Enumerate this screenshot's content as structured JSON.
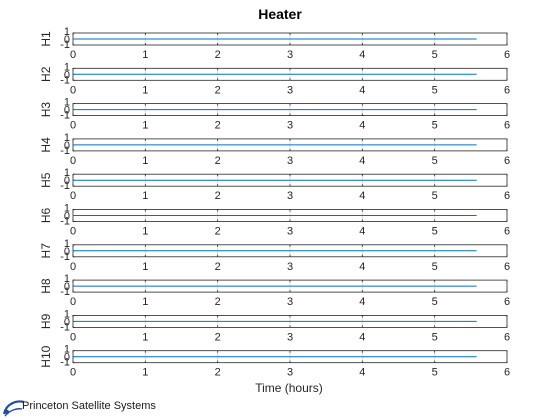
{
  "chart_data": {
    "type": "line",
    "title": "Heater",
    "xlabel": "Time (hours)",
    "xlim": [
      0,
      6
    ],
    "ylim": [
      -1,
      1
    ],
    "xticks": [
      "0",
      "1",
      "2",
      "3",
      "4",
      "5",
      "6"
    ],
    "yticks": [
      "-1",
      "0",
      "1"
    ],
    "grid": "x",
    "subplots": [
      {
        "ylabel": "H1",
        "x": [
          0,
          5.58
        ],
        "y": [
          0,
          0
        ]
      },
      {
        "ylabel": "H2",
        "x": [
          0,
          5.58
        ],
        "y": [
          0,
          0
        ]
      },
      {
        "ylabel": "H3",
        "x": [
          0,
          5.58
        ],
        "y": [
          0,
          0
        ]
      },
      {
        "ylabel": "H4",
        "x": [
          0,
          5.58
        ],
        "y": [
          0,
          0
        ]
      },
      {
        "ylabel": "H5",
        "x": [
          0,
          5.58
        ],
        "y": [
          0,
          0
        ]
      },
      {
        "ylabel": "H6",
        "x": [
          0,
          5.58
        ],
        "y": [
          0,
          0
        ]
      },
      {
        "ylabel": "H7",
        "x": [
          0,
          5.58
        ],
        "y": [
          0,
          0
        ]
      },
      {
        "ylabel": "H8",
        "x": [
          0,
          5.58
        ],
        "y": [
          0,
          0
        ]
      },
      {
        "ylabel": "H9",
        "x": [
          0,
          5.58
        ],
        "y": [
          0,
          0
        ]
      },
      {
        "ylabel": "H10",
        "x": [
          0,
          5.58
        ],
        "y": [
          0,
          0
        ]
      }
    ],
    "line_color": "#0072bd"
  },
  "logo": {
    "text": "Princeton Satellite Systems"
  }
}
